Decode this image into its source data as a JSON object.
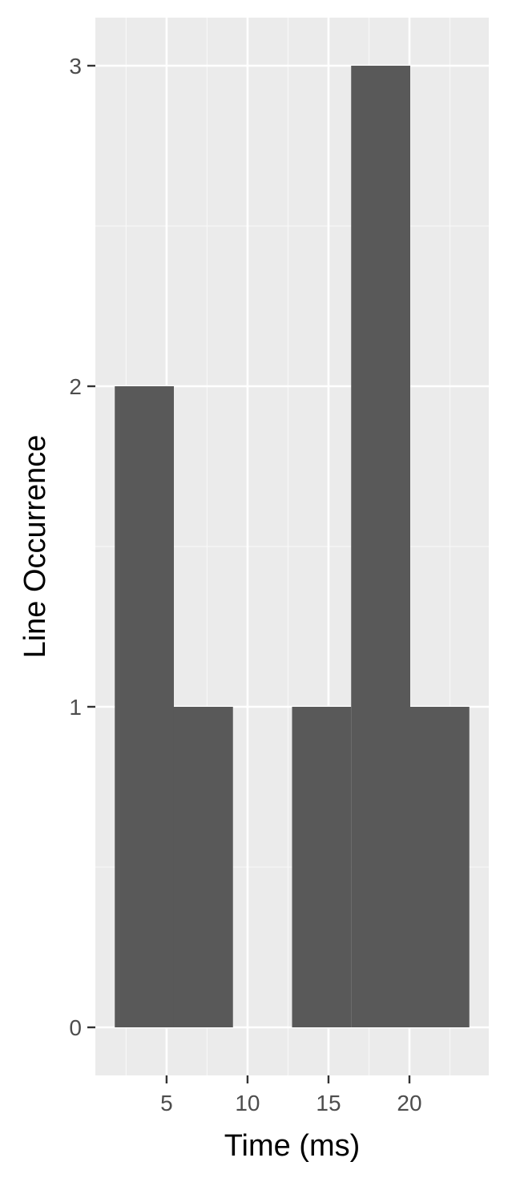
{
  "chart_data": {
    "type": "bar",
    "title": "",
    "xlabel": "Time (ms)",
    "ylabel": "Line Occurrence",
    "bins": [
      {
        "x_start": 1.8,
        "x_end": 5.45,
        "count": 2
      },
      {
        "x_start": 5.45,
        "x_end": 9.1,
        "count": 1
      },
      {
        "x_start": 9.1,
        "x_end": 12.75,
        "count": 0
      },
      {
        "x_start": 12.75,
        "x_end": 16.4,
        "count": 1
      },
      {
        "x_start": 16.4,
        "x_end": 20.05,
        "count": 3
      },
      {
        "x_start": 20.05,
        "x_end": 23.7,
        "count": 1
      }
    ],
    "x_ticks": [
      5,
      10,
      15,
      20
    ],
    "x_tick_labels": [
      "5",
      "10",
      "15",
      "20"
    ],
    "y_ticks": [
      0,
      1,
      2,
      3
    ],
    "y_tick_labels": [
      "0",
      "1",
      "2",
      "3"
    ],
    "xlim": [
      0.6,
      24.9
    ],
    "ylim": [
      -0.15,
      3.15
    ],
    "grid": true,
    "legend": "none",
    "colors": {
      "panel_background": "#ebebeb",
      "grid_major": "#ffffff",
      "grid_minor": "#f7f7f7",
      "bar_fill": "#595959",
      "tick_mark": "#333333",
      "tick_text": "#4d4d4d",
      "axis_title": "#000000"
    }
  }
}
